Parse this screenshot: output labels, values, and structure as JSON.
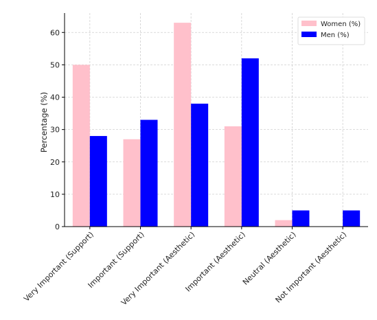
{
  "chart_data": {
    "type": "bar",
    "title": "",
    "xlabel": "",
    "ylabel": "Percentage (%)",
    "ylim": [
      0,
      66
    ],
    "yticks": [
      0,
      10,
      20,
      30,
      40,
      50,
      60
    ],
    "grid": true,
    "legend_position": "top-right",
    "categories": [
      "Very Important (Support)",
      "Important (Support)",
      "Very Important (Aesthetic)",
      "Important (Aesthetic)",
      "Neutral (Aesthetic)",
      "Not Important (Aesthetic)"
    ],
    "series": [
      {
        "name": "Women (%)",
        "color": "#ffc0cb",
        "values": [
          50,
          27,
          63,
          31,
          2,
          0
        ]
      },
      {
        "name": "Men (%)",
        "color": "#0000ff",
        "values": [
          28,
          33,
          38,
          52,
          5,
          5
        ]
      }
    ]
  }
}
